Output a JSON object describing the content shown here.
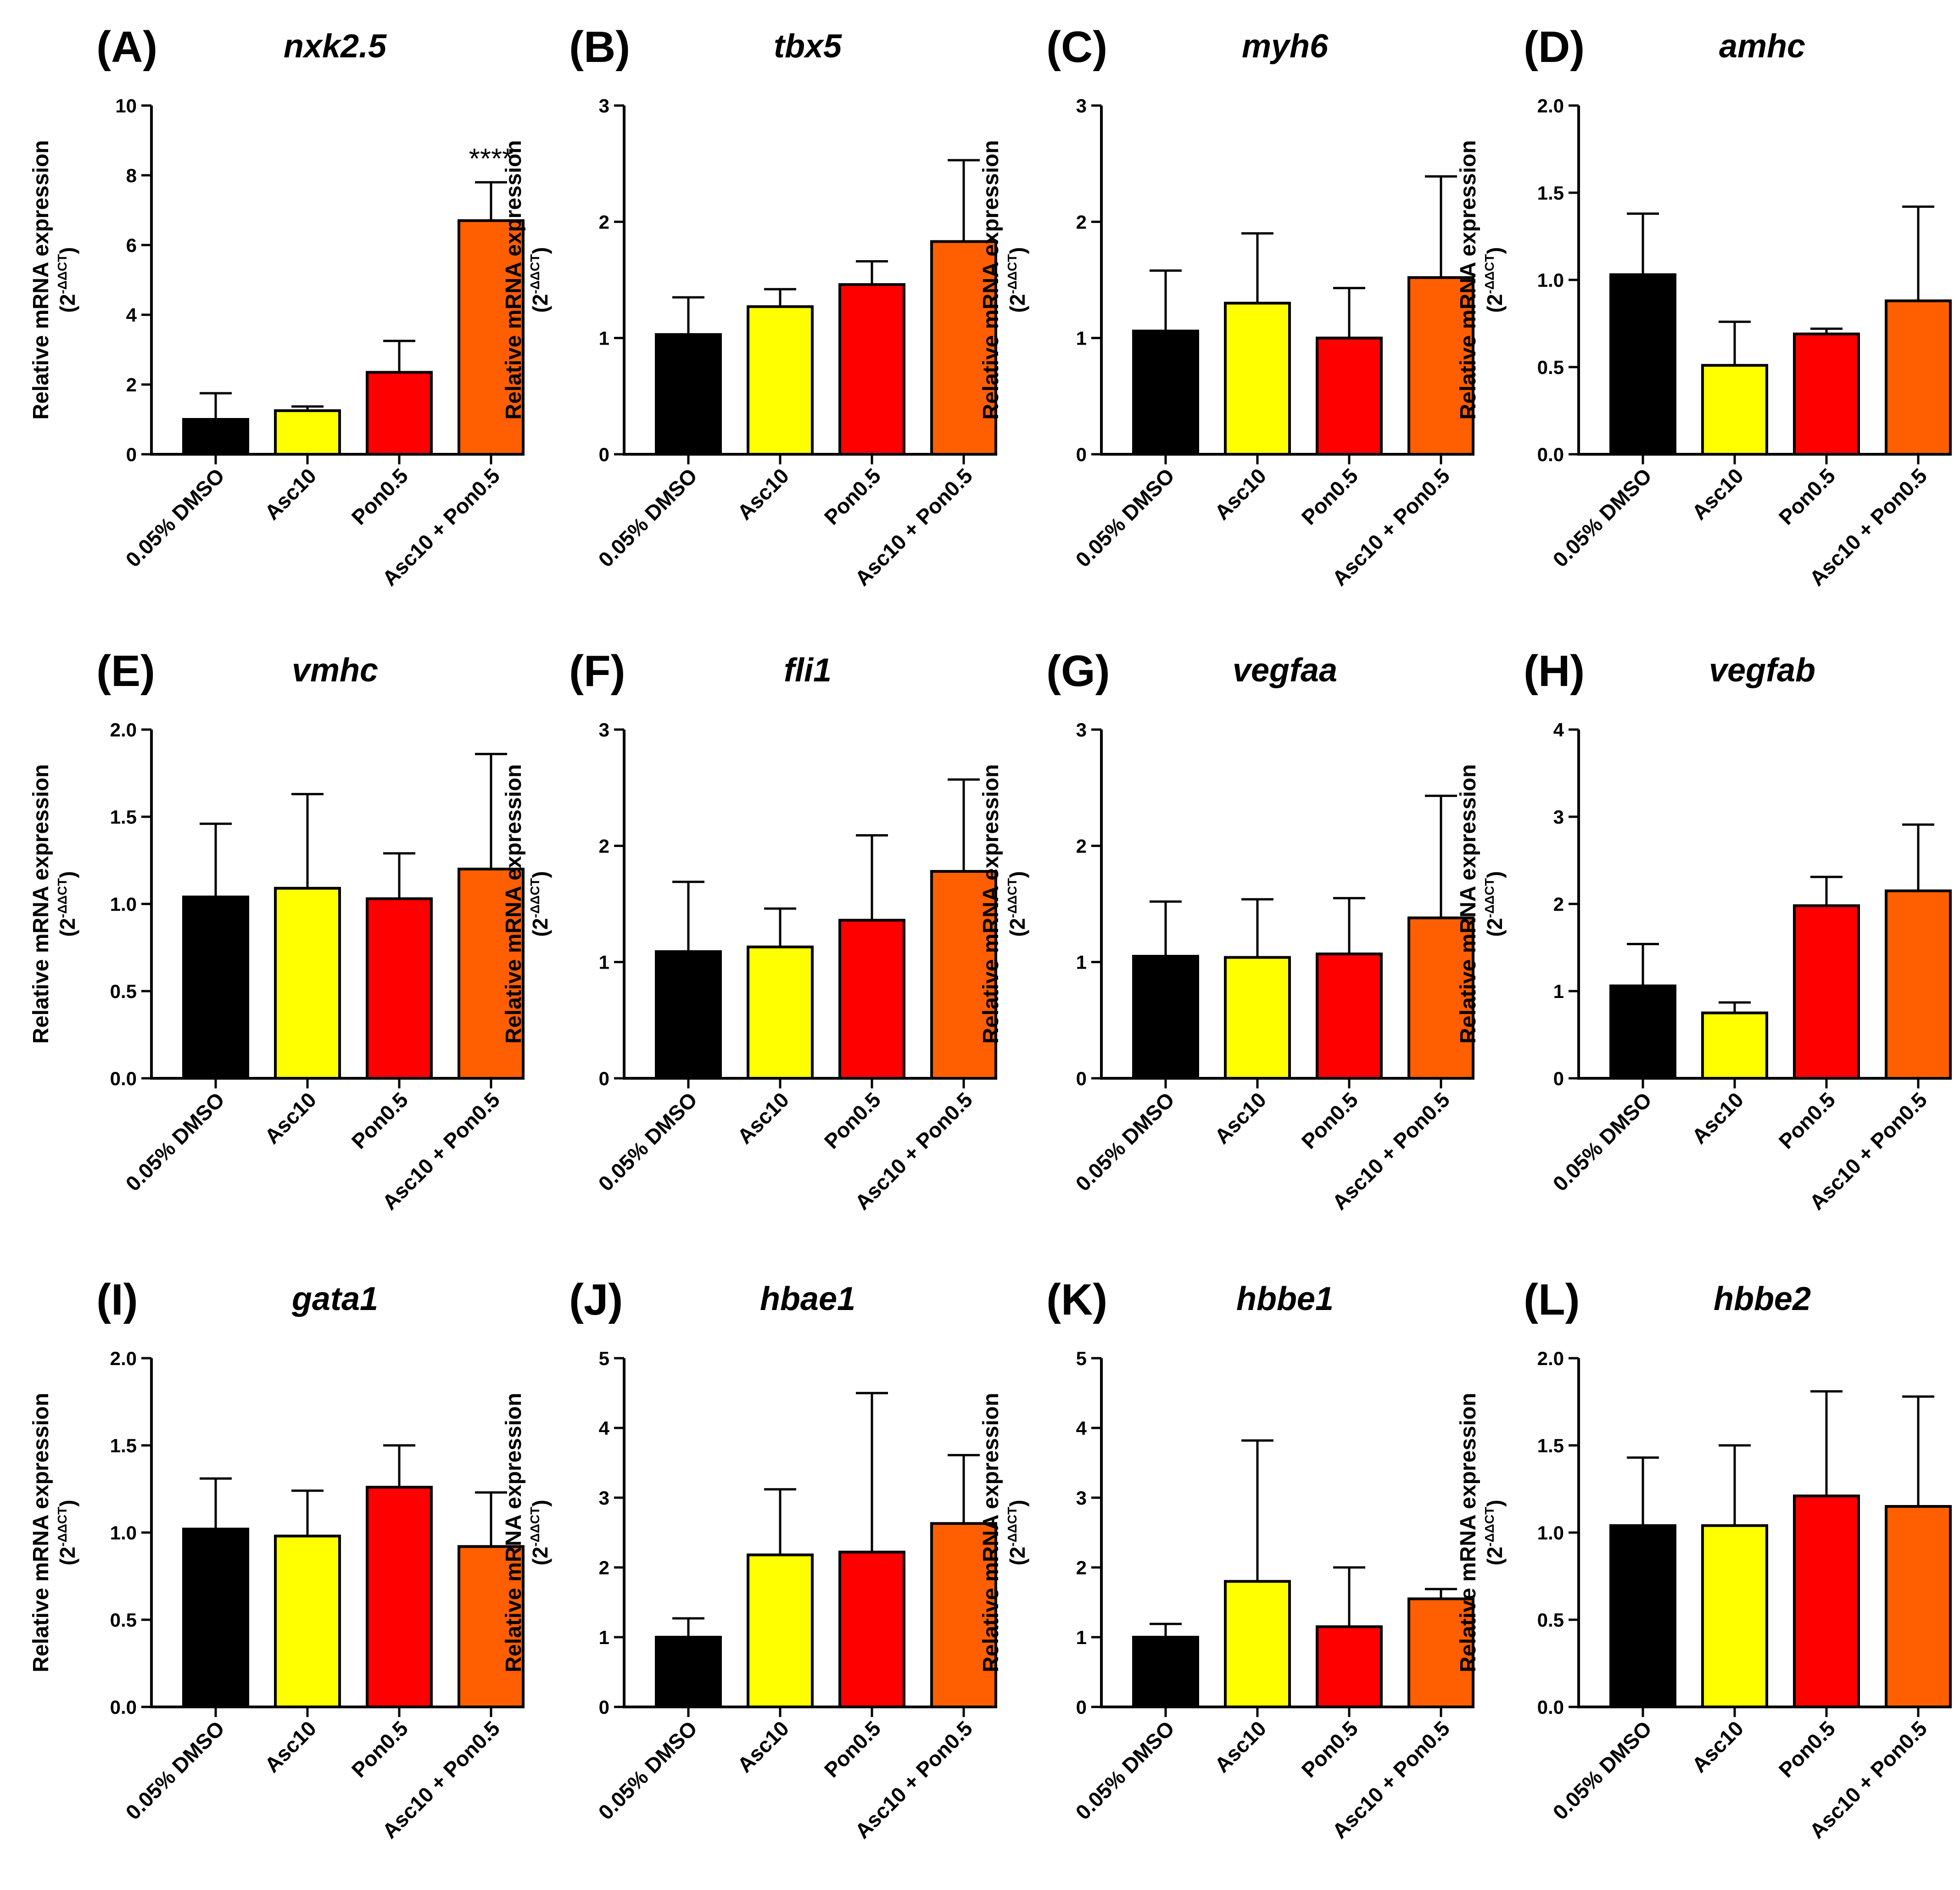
{
  "chart_data": [
    {
      "type": "bar",
      "panel": "(A)",
      "title": "nxk2.5",
      "ylabel": "Relative mRNA expression",
      "ylabel_unit_base": "(2",
      "ylabel_unit_exp": "-ΔΔCT",
      "ylabel_unit_close": ")",
      "ylim": [
        0,
        10
      ],
      "ticks": [
        "0",
        "2",
        "4",
        "6",
        "8",
        "10"
      ],
      "categories": [
        "0.05% DMSO",
        "Asc10",
        "Pon0.5",
        "Asc10 + Pon0.5"
      ],
      "values": [
        1.0,
        1.25,
        2.35,
        6.7
      ],
      "error": [
        0.75,
        0.12,
        0.9,
        1.1
      ],
      "annotations": [
        {
          "category": "Asc10 + Pon0.5",
          "text": "****"
        }
      ]
    },
    {
      "type": "bar",
      "panel": "(B)",
      "title": "tbx5",
      "ylabel": "Relative mRNA expression",
      "ylabel_unit_base": "(2",
      "ylabel_unit_exp": "-ΔΔCT",
      "ylabel_unit_close": ")",
      "ylim": [
        0,
        3
      ],
      "ticks": [
        "0",
        "1",
        "2",
        "3"
      ],
      "categories": [
        "0.05% DMSO",
        "Asc10",
        "Pon0.5",
        "Asc10 + Pon0.5"
      ],
      "values": [
        1.03,
        1.27,
        1.46,
        1.83
      ],
      "error": [
        0.32,
        0.15,
        0.2,
        0.7
      ],
      "annotations": []
    },
    {
      "type": "bar",
      "panel": "(C)",
      "title": "myh6",
      "ylabel": "Relative mRNA expression",
      "ylabel_unit_base": "(2",
      "ylabel_unit_exp": "-ΔΔCT",
      "ylabel_unit_close": ")",
      "ylim": [
        0,
        3
      ],
      "ticks": [
        "0",
        "1",
        "2",
        "3"
      ],
      "categories": [
        "0.05% DMSO",
        "Asc10",
        "Pon0.5",
        "Asc10 + Pon0.5"
      ],
      "values": [
        1.06,
        1.3,
        1.0,
        1.52
      ],
      "error": [
        0.52,
        0.6,
        0.43,
        0.87
      ],
      "annotations": []
    },
    {
      "type": "bar",
      "panel": "(D)",
      "title": "amhc",
      "ylabel": "Relative mRNA expression",
      "ylabel_unit_base": "(2",
      "ylabel_unit_exp": "-ΔΔCT",
      "ylabel_unit_close": ")",
      "ylim": [
        0,
        2
      ],
      "ticks": [
        "0.0",
        "0.5",
        "1.0",
        "1.5",
        "2.0"
      ],
      "categories": [
        "0.05% DMSO",
        "Asc10",
        "Pon0.5",
        "Asc10 + Pon0.5"
      ],
      "values": [
        1.03,
        0.51,
        0.69,
        0.88
      ],
      "error": [
        0.35,
        0.25,
        0.03,
        0.54
      ],
      "annotations": []
    },
    {
      "type": "bar",
      "panel": "(E)",
      "title": "vmhc",
      "ylabel": "Relative mRNA expression",
      "ylabel_unit_base": "(2",
      "ylabel_unit_exp": "-ΔΔCT",
      "ylabel_unit_close": ")",
      "ylim": [
        0,
        2
      ],
      "ticks": [
        "0.0",
        "0.5",
        "1.0",
        "1.5",
        "2.0"
      ],
      "categories": [
        "0.05% DMSO",
        "Asc10",
        "Pon0.5",
        "Asc10 + Pon0.5"
      ],
      "values": [
        1.04,
        1.09,
        1.03,
        1.2
      ],
      "error": [
        0.42,
        0.54,
        0.26,
        0.66
      ],
      "annotations": []
    },
    {
      "type": "bar",
      "panel": "(F)",
      "title": "fli1",
      "ylabel": "Relative mRNA expression",
      "ylabel_unit_base": "(2",
      "ylabel_unit_exp": "-ΔΔCT",
      "ylabel_unit_close": ")",
      "ylim": [
        0,
        3
      ],
      "ticks": [
        "0",
        "1",
        "2",
        "3"
      ],
      "categories": [
        "0.05% DMSO",
        "Asc10",
        "Pon0.5",
        "Asc10 + Pon0.5"
      ],
      "values": [
        1.09,
        1.13,
        1.36,
        1.78
      ],
      "error": [
        0.6,
        0.33,
        0.73,
        0.79
      ],
      "annotations": []
    },
    {
      "type": "bar",
      "panel": "(G)",
      "title": "vegfaa",
      "ylabel": "Relative mRNA expression",
      "ylabel_unit_base": "(2",
      "ylabel_unit_exp": "-ΔΔCT",
      "ylabel_unit_close": ")",
      "ylim": [
        0,
        3
      ],
      "ticks": [
        "0",
        "1",
        "2",
        "3"
      ],
      "categories": [
        "0.05% DMSO",
        "Asc10",
        "Pon0.5",
        "Asc10 + Pon0.5"
      ],
      "values": [
        1.05,
        1.04,
        1.07,
        1.38
      ],
      "error": [
        0.47,
        0.5,
        0.48,
        1.05
      ],
      "annotations": []
    },
    {
      "type": "bar",
      "panel": "(H)",
      "title": "vegfab",
      "ylabel": "Relative mRNA expression",
      "ylabel_unit_base": "(2",
      "ylabel_unit_exp": "-ΔΔCT",
      "ylabel_unit_close": ")",
      "ylim": [
        0,
        4
      ],
      "ticks": [
        "0",
        "1",
        "2",
        "3",
        "4"
      ],
      "categories": [
        "0.05% DMSO",
        "Asc10",
        "Pon0.5",
        "Asc10 + Pon0.5"
      ],
      "values": [
        1.06,
        0.75,
        1.98,
        2.15
      ],
      "error": [
        0.48,
        0.12,
        0.33,
        0.76
      ],
      "annotations": []
    },
    {
      "type": "bar",
      "panel": "(I)",
      "title": "gata1",
      "ylabel": "Relative mRNA expression",
      "ylabel_unit_base": "(2",
      "ylabel_unit_exp": "-ΔΔCT",
      "ylabel_unit_close": ")",
      "ylim": [
        0,
        2
      ],
      "ticks": [
        "0.0",
        "0.5",
        "1.0",
        "1.5",
        "2.0"
      ],
      "categories": [
        "0.05% DMSO",
        "Asc10",
        "Pon0.5",
        "Asc10 + Pon0.5"
      ],
      "values": [
        1.02,
        0.98,
        1.26,
        0.92
      ],
      "error": [
        0.29,
        0.26,
        0.24,
        0.31
      ],
      "annotations": []
    },
    {
      "type": "bar",
      "panel": "(J)",
      "title": "hbae1",
      "ylabel": "Relative mRNA expression",
      "ylabel_unit_base": "(2",
      "ylabel_unit_exp": "-ΔΔCT",
      "ylabel_unit_close": ")",
      "ylim": [
        0,
        5
      ],
      "ticks": [
        "0",
        "1",
        "2",
        "3",
        "4",
        "5"
      ],
      "categories": [
        "0.05% DMSO",
        "Asc10",
        "Pon0.5",
        "Asc10 + Pon0.5"
      ],
      "values": [
        1.0,
        2.18,
        2.22,
        2.63
      ],
      "error": [
        0.27,
        0.94,
        2.28,
        0.98
      ],
      "annotations": []
    },
    {
      "type": "bar",
      "panel": "(K)",
      "title": "hbbe1",
      "ylabel": "Relative mRNA expression",
      "ylabel_unit_base": "(2",
      "ylabel_unit_exp": "-ΔΔCT",
      "ylabel_unit_close": ")",
      "ylim": [
        0,
        5
      ],
      "ticks": [
        "0",
        "1",
        "2",
        "3",
        "4",
        "5"
      ],
      "categories": [
        "0.05% DMSO",
        "Asc10",
        "Pon0.5",
        "Asc10 + Pon0.5"
      ],
      "values": [
        1.0,
        1.8,
        1.15,
        1.55
      ],
      "error": [
        0.19,
        2.02,
        0.85,
        0.14
      ],
      "annotations": []
    },
    {
      "type": "bar",
      "panel": "(L)",
      "title": "hbbe2",
      "ylabel": "Relative mRNA expression",
      "ylabel_unit_base": "(2",
      "ylabel_unit_exp": "-ΔΔCT",
      "ylabel_unit_close": ")",
      "ylim": [
        0,
        2
      ],
      "ticks": [
        "0.0",
        "0.5",
        "1.0",
        "1.5",
        "2.0"
      ],
      "categories": [
        "0.05% DMSO",
        "Asc10",
        "Pon0.5",
        "Asc10 + Pon0.5"
      ],
      "values": [
        1.04,
        1.04,
        1.21,
        1.15
      ],
      "error": [
        0.39,
        0.46,
        0.6,
        0.63
      ],
      "annotations": []
    }
  ],
  "colors": {
    "bars": [
      "#000000",
      "#ffff00",
      "#ff0000",
      "#ff5f00"
    ],
    "axis": "#000000"
  }
}
